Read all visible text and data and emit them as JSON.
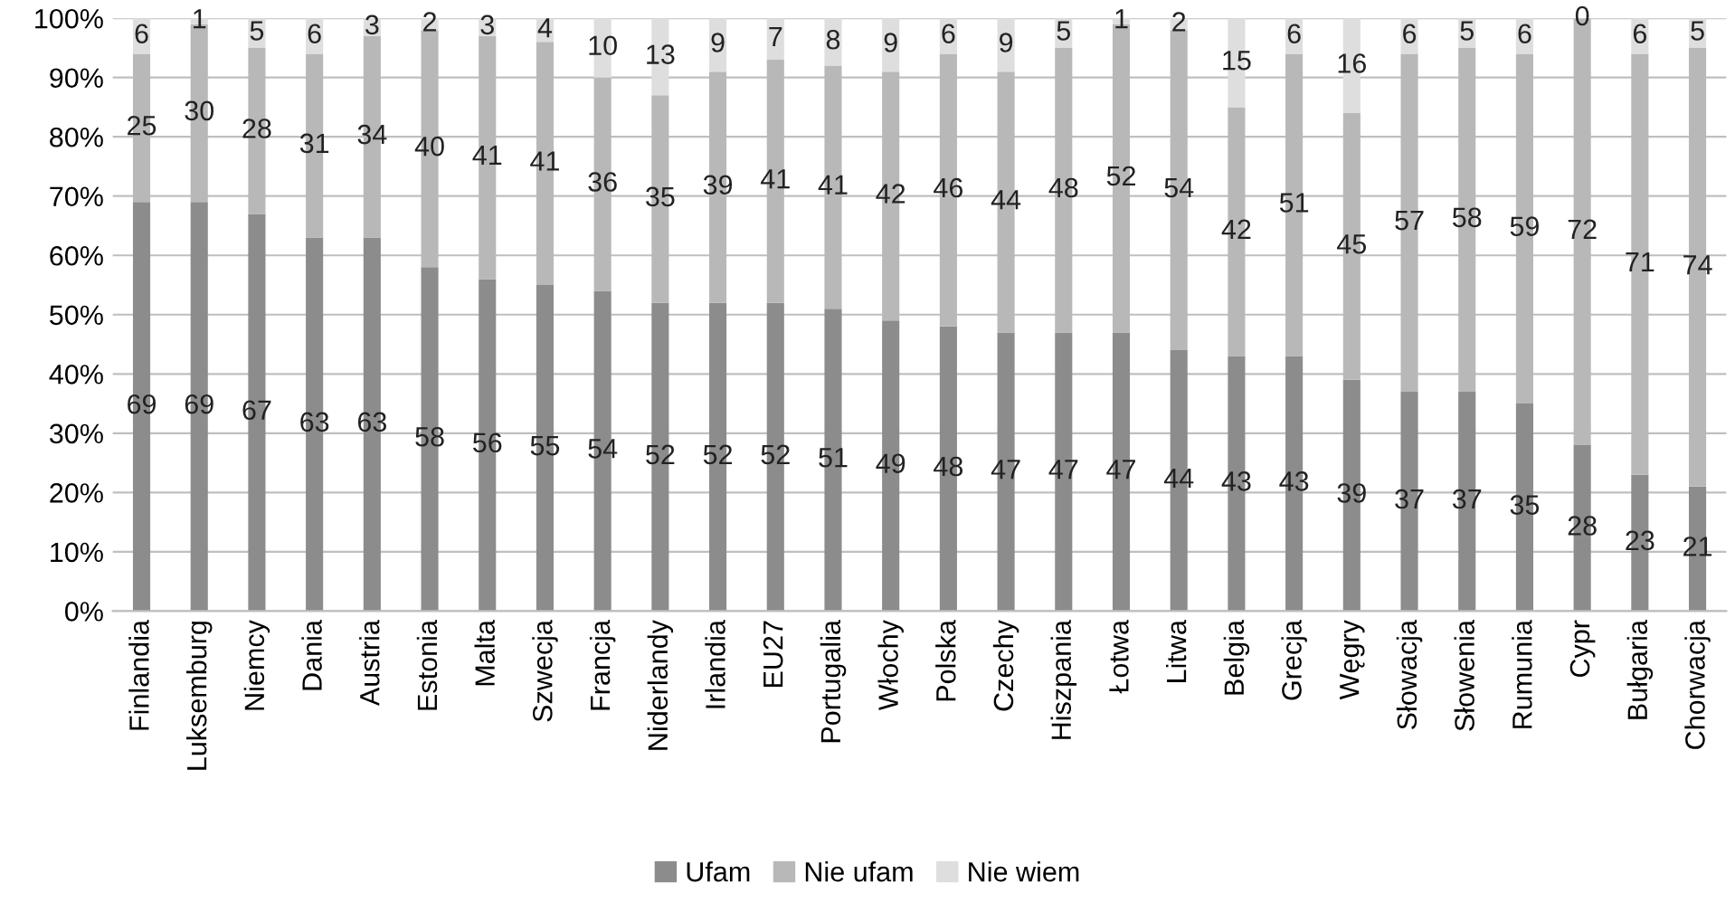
{
  "chart_data": {
    "type": "bar",
    "stacked": true,
    "categories": [
      "Finlandia",
      "Luksemburg",
      "Niemcy",
      "Dania",
      "Austria",
      "Estonia",
      "Malta",
      "Szwecja",
      "Francja",
      "Niderlandy",
      "Irlandia",
      "EU27",
      "Portugalia",
      "Włochy",
      "Polska",
      "Czechy",
      "Hiszpania",
      "Łotwa",
      "Litwa",
      "Belgia",
      "Grecja",
      "Węgry",
      "Słowacja",
      "Słowenia",
      "Rumunia",
      "Cypr",
      "Bułgaria",
      "Chorwacja"
    ],
    "series": [
      {
        "name": "Ufam",
        "color": "#8c8c8c",
        "values": [
          69,
          69,
          67,
          63,
          63,
          58,
          56,
          55,
          54,
          52,
          52,
          52,
          51,
          49,
          48,
          47,
          47,
          47,
          44,
          43,
          43,
          39,
          37,
          37,
          35,
          28,
          23,
          21
        ]
      },
      {
        "name": "Nie ufam",
        "color": "#b8b8b8",
        "values": [
          25,
          30,
          28,
          31,
          34,
          40,
          41,
          41,
          36,
          35,
          39,
          41,
          41,
          42,
          46,
          44,
          48,
          52,
          54,
          42,
          51,
          45,
          57,
          58,
          59,
          72,
          71,
          74
        ]
      },
      {
        "name": "Nie wiem",
        "color": "#dedede",
        "values": [
          6,
          1,
          5,
          6,
          3,
          2,
          3,
          4,
          10,
          13,
          9,
          7,
          8,
          9,
          6,
          9,
          5,
          1,
          2,
          15,
          6,
          16,
          6,
          5,
          6,
          0,
          6,
          5
        ]
      }
    ],
    "ylim": [
      0,
      100
    ],
    "yticks": [
      {
        "value": 0,
        "label": "0%"
      },
      {
        "value": 10,
        "label": "10%"
      },
      {
        "value": 20,
        "label": "20%"
      },
      {
        "value": 30,
        "label": "30%"
      },
      {
        "value": 40,
        "label": "40%"
      },
      {
        "value": 50,
        "label": "50%"
      },
      {
        "value": 60,
        "label": "60%"
      },
      {
        "value": 70,
        "label": "70%"
      },
      {
        "value": 80,
        "label": "80%"
      },
      {
        "value": 90,
        "label": "90%"
      },
      {
        "value": 100,
        "label": "100%"
      }
    ],
    "grid": "y",
    "legend": "bottom",
    "data_labels": true
  }
}
